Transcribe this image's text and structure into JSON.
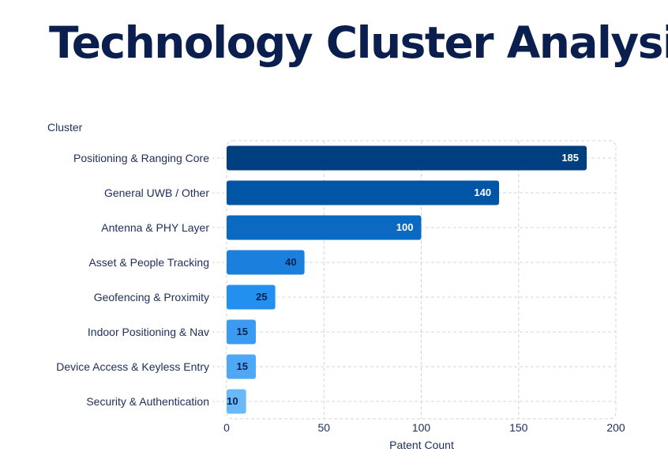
{
  "page": {
    "title": "Technology Cluster Analysis"
  },
  "chart_data": {
    "type": "bar",
    "orientation": "horizontal",
    "categories": [
      "Positioning & Ranging Core",
      "General UWB / Other",
      "Antenna & PHY Layer",
      "Asset & People Tracking",
      "Geofencing & Proximity",
      "Indoor Positioning & Nav",
      "Device Access & Keyless Entry",
      "Security & Authentication"
    ],
    "values": [
      185,
      140,
      100,
      40,
      25,
      15,
      15,
      10
    ],
    "bar_colors": [
      "#003f7f",
      "#0055a4",
      "#0b69c2",
      "#1a7fdd",
      "#2390f0",
      "#3a9bf0",
      "#4ea8f5",
      "#69b8f8"
    ],
    "label_colors": [
      "#ffffff",
      "#ffffff",
      "#ffffff",
      "#0b1f4f",
      "#0b1f4f",
      "#0b1f4f",
      "#0b1f4f",
      "#0b1f4f"
    ],
    "xlabel": "Patent Count",
    "ylabel": "Cluster",
    "xlim": [
      0,
      200
    ],
    "xticks": [
      0,
      50,
      100,
      150,
      200
    ],
    "grid": true,
    "text_color": "#1e2d5a",
    "grid_color": "#d0d4da"
  }
}
